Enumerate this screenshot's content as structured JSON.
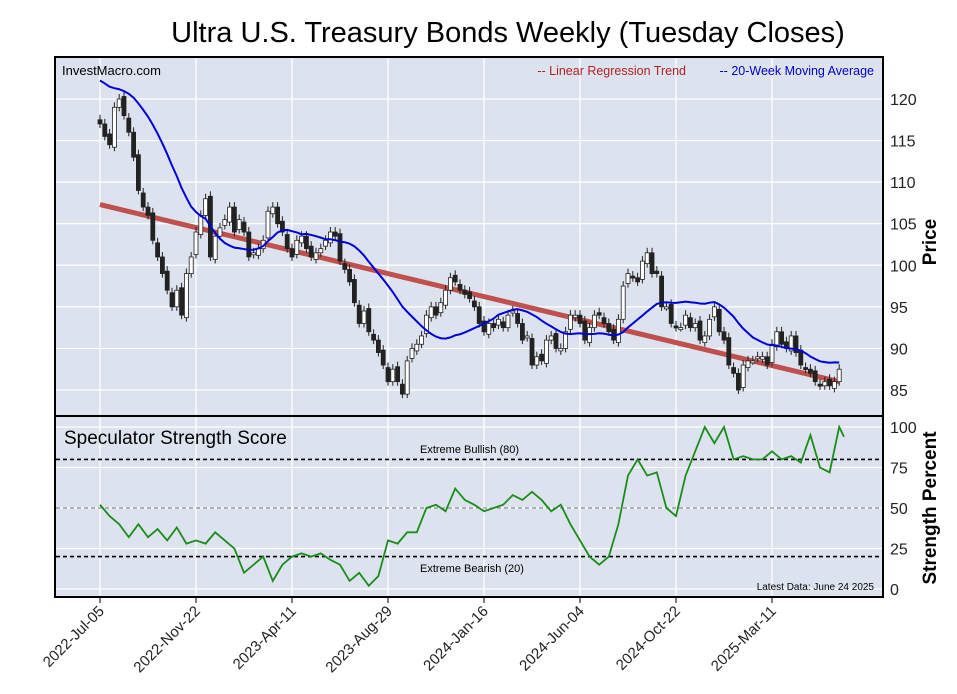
{
  "chart_data": [
    {
      "type": "candlestick",
      "title": "Ultra U.S. Treasury Bonds Weekly (Tuesday Closes)",
      "watermark": "InvestMacro.com",
      "ylabel": "Price",
      "ylim": [
        80,
        125
      ],
      "yticks": [
        85,
        90,
        95,
        100,
        105,
        110,
        115,
        120
      ],
      "xticks": [
        "2022-Jul-05",
        "2022-Nov-22",
        "2023-Apr-11",
        "2023-Aug-29",
        "2024-Jan-16",
        "2024-Jun-04",
        "2024-Oct-22",
        "2025-Mar-11"
      ],
      "xtick_weeks": [
        0,
        20,
        40,
        60,
        80,
        100,
        120,
        140
      ],
      "legend": [
        {
          "label": "-- Linear Regression Trend",
          "color": "#b22222"
        },
        {
          "label": "-- 20-Week Moving Average",
          "color": "#0000cc"
        }
      ],
      "trend": {
        "start": 107.3,
        "end": 86.0
      },
      "moving_average_start": 122.5,
      "closes": [
        117,
        115.5,
        114.5,
        119,
        120,
        118,
        116,
        113,
        109,
        107,
        106,
        103,
        101,
        99,
        97,
        95,
        97,
        94,
        99,
        101,
        104,
        106,
        108,
        101,
        103.5,
        104.5,
        105.5,
        107,
        104,
        105.5,
        104,
        101,
        101.5,
        102,
        103,
        106.5,
        107,
        105,
        104,
        102,
        101,
        103,
        103.5,
        102,
        101,
        101.5,
        102,
        103,
        104,
        103.5,
        100.5,
        99.5,
        98,
        95.5,
        93,
        94.5,
        92,
        91,
        89.5,
        88,
        86,
        87.5,
        86,
        84.5,
        88.5,
        90,
        90.5,
        91.5,
        94,
        95,
        94,
        95.5,
        97,
        98.5,
        98,
        97,
        96.5,
        96,
        95,
        93,
        92,
        93,
        92.5,
        93.5,
        92.5,
        94,
        94.5,
        93,
        91,
        91.5,
        88,
        89,
        88.5,
        91,
        91.5,
        90,
        90,
        92,
        94,
        94,
        93,
        91,
        92.5,
        94,
        94,
        93,
        92,
        91,
        93.5,
        97.5,
        99,
        98.5,
        98,
        100.5,
        101.5,
        99,
        99,
        95,
        95,
        93,
        92.5,
        92.5,
        94,
        92.5,
        93,
        91,
        91.5,
        93.5,
        95,
        92,
        91,
        88,
        87,
        85,
        88,
        88.5,
        88.5,
        89,
        89,
        88,
        90.5,
        92,
        90.5,
        90,
        91.5,
        89.5,
        88,
        87.5,
        87,
        86,
        85.5,
        86,
        85.5,
        86,
        87.5
      ]
    },
    {
      "type": "line",
      "title": "Speculator Strength Score",
      "ylabel": "Strength Percent",
      "ylim": [
        0,
        100
      ],
      "yticks": [
        0,
        25,
        50,
        75,
        100
      ],
      "annotations": [
        "Extreme Bullish (80)",
        "Extreme Bearish (20)",
        "Latest Data: June 24 2025"
      ],
      "thresholds": [
        80,
        50,
        20
      ],
      "color": "#1a8c1a",
      "weeks": [
        0,
        2,
        4,
        6,
        8,
        10,
        12,
        14,
        16,
        18,
        20,
        22,
        24,
        26,
        28,
        30,
        32,
        34,
        36,
        38,
        40,
        42,
        44,
        46,
        48,
        50,
        52,
        54,
        56,
        58,
        60,
        62,
        64,
        66,
        68,
        70,
        72,
        74,
        76,
        78,
        80,
        82,
        84,
        86,
        88,
        90,
        92,
        94,
        96,
        98,
        100,
        102,
        104,
        106,
        108,
        110,
        112,
        114,
        116,
        118,
        120,
        122,
        124,
        126,
        128,
        130,
        132,
        134,
        136,
        138,
        140,
        142,
        144,
        146,
        148,
        150,
        152,
        154,
        155
      ],
      "values": [
        52,
        45,
        40,
        32,
        40,
        32,
        37,
        30,
        38,
        28,
        30,
        28,
        35,
        30,
        25,
        10,
        15,
        20,
        5,
        15,
        20,
        22,
        20,
        22,
        18,
        15,
        5,
        10,
        2,
        8,
        30,
        28,
        35,
        35,
        50,
        52,
        48,
        62,
        55,
        52,
        48,
        50,
        52,
        58,
        55,
        60,
        55,
        48,
        52,
        40,
        30,
        20,
        15,
        20,
        40,
        70,
        80,
        70,
        72,
        50,
        45,
        70,
        85,
        100,
        90,
        100,
        80,
        82,
        80,
        80,
        85,
        80,
        82,
        78,
        95,
        75,
        72,
        100,
        94
      ]
    }
  ]
}
